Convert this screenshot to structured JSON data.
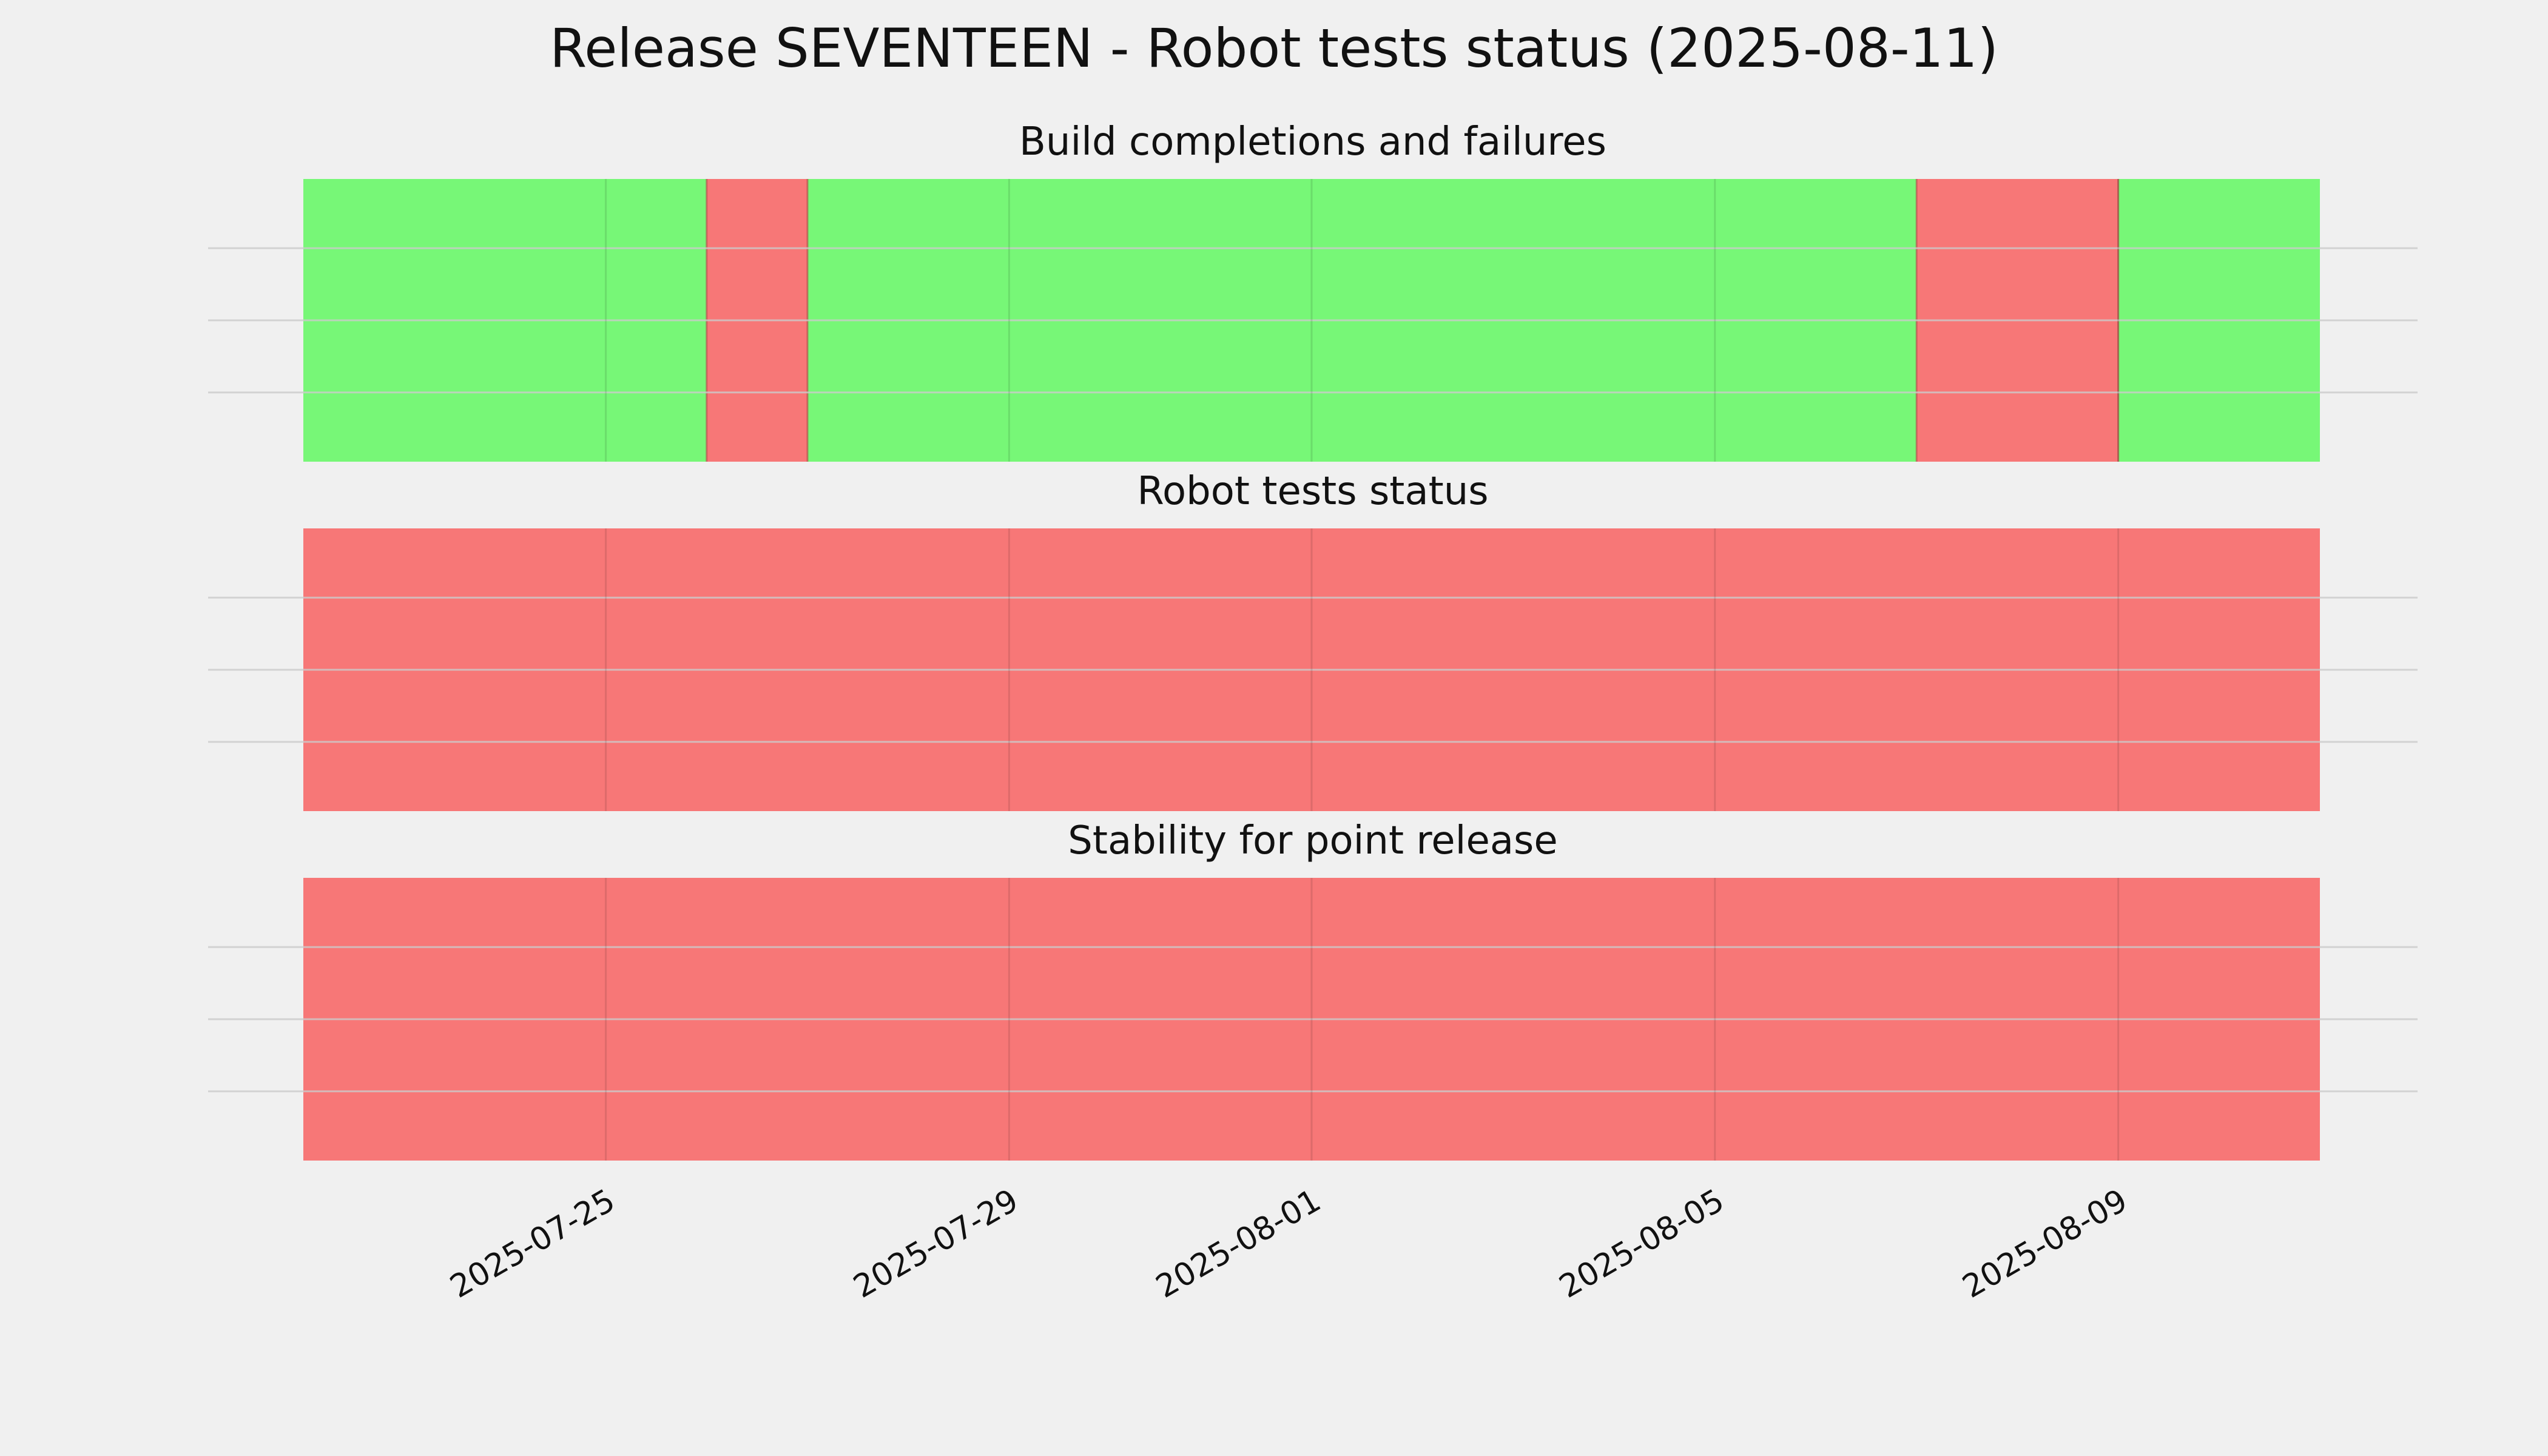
{
  "title": "Release SEVENTEEN - Robot tests status (2025-08-11)",
  "colors": {
    "background": "#f0f0f0",
    "pass": "#77f777",
    "fail": "#f77777",
    "grid": "#cbcbcb"
  },
  "chart_data": [
    {
      "type": "timeline",
      "title": "Build completions and failures",
      "xlim": [
        "2025-07-22",
        "2025-08-11"
      ],
      "segments": [
        {
          "start": "2025-07-22",
          "end": "2025-07-26",
          "status": "pass"
        },
        {
          "start": "2025-07-26",
          "end": "2025-07-27",
          "status": "fail"
        },
        {
          "start": "2025-07-27",
          "end": "2025-08-07",
          "status": "pass"
        },
        {
          "start": "2025-08-07",
          "end": "2025-08-09",
          "status": "fail"
        },
        {
          "start": "2025-08-09",
          "end": "2025-08-11",
          "status": "pass"
        }
      ],
      "x_ticks": [
        "2025-07-25",
        "2025-07-29",
        "2025-08-01",
        "2025-08-05",
        "2025-08-09"
      ],
      "grid": true
    },
    {
      "type": "timeline",
      "title": "Robot tests status",
      "xlim": [
        "2025-07-22",
        "2025-08-11"
      ],
      "segments": [
        {
          "start": "2025-07-22",
          "end": "2025-08-11",
          "status": "fail"
        }
      ],
      "x_ticks": [
        "2025-07-25",
        "2025-07-29",
        "2025-08-01",
        "2025-08-05",
        "2025-08-09"
      ],
      "grid": true
    },
    {
      "type": "timeline",
      "title": "Stability for point release",
      "xlim": [
        "2025-07-22",
        "2025-08-11"
      ],
      "segments": [
        {
          "start": "2025-07-22",
          "end": "2025-08-11",
          "status": "fail"
        }
      ],
      "x_ticks": [
        "2025-07-25",
        "2025-07-29",
        "2025-08-01",
        "2025-08-05",
        "2025-08-09"
      ],
      "grid": true
    }
  ]
}
